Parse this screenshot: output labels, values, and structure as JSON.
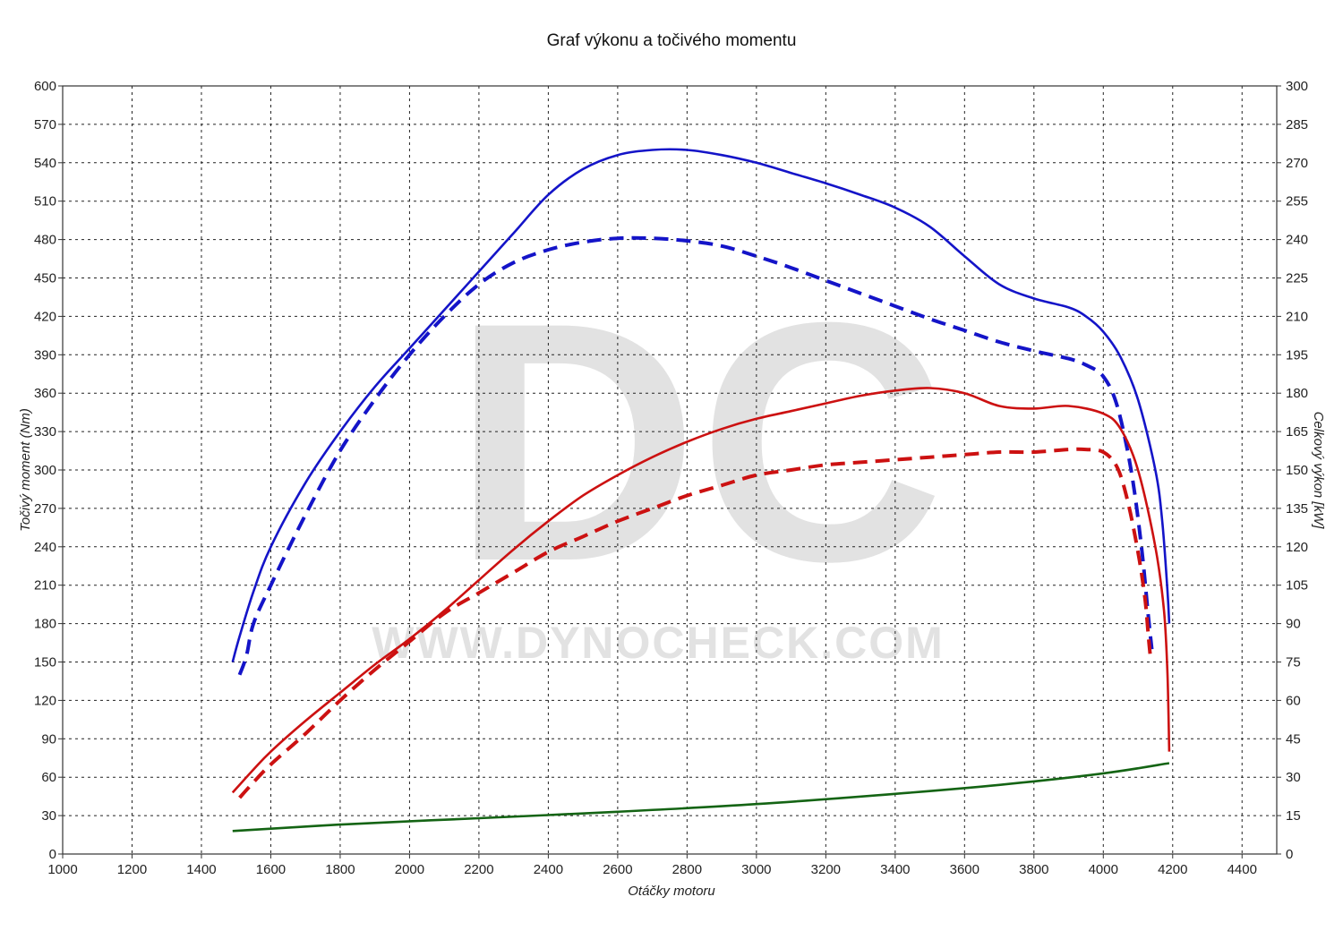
{
  "chart_data": {
    "type": "line",
    "title": "Graf výkonu a točivého momentu",
    "xlabel": "Otáčky motoru",
    "ylabel_left": "Točivý moment (Nm)",
    "ylabel_right": "Celkový výkon [kW]",
    "xlim": [
      1000,
      4500
    ],
    "ylim_left": [
      0,
      600
    ],
    "ylim_right": [
      0,
      300
    ],
    "x_ticks": [
      1000,
      1200,
      1400,
      1600,
      1800,
      2000,
      2200,
      2400,
      2600,
      2800,
      3000,
      3200,
      3400,
      3600,
      3800,
      4000,
      4200,
      4400
    ],
    "y_ticks_left": [
      0,
      30,
      60,
      90,
      120,
      150,
      180,
      210,
      240,
      270,
      300,
      330,
      360,
      390,
      420,
      450,
      480,
      510,
      540,
      570,
      600
    ],
    "y_ticks_right": [
      0,
      15,
      30,
      45,
      60,
      75,
      90,
      105,
      120,
      135,
      150,
      165,
      180,
      195,
      210,
      225,
      240,
      255,
      270,
      285,
      300
    ],
    "grid": true,
    "watermark": {
      "big": "DC",
      "url": "WWW.DYNOCHECK.COM"
    },
    "series": [
      {
        "axis": "left",
        "color": "#1414c8",
        "dash": false,
        "points": [
          [
            1490,
            150
          ],
          [
            1510,
            170
          ],
          [
            1550,
            205
          ],
          [
            1600,
            240
          ],
          [
            1700,
            290
          ],
          [
            1800,
            330
          ],
          [
            1900,
            365
          ],
          [
            2000,
            395
          ],
          [
            2100,
            425
          ],
          [
            2200,
            455
          ],
          [
            2300,
            485
          ],
          [
            2400,
            515
          ],
          [
            2500,
            535
          ],
          [
            2600,
            546
          ],
          [
            2700,
            550
          ],
          [
            2800,
            550
          ],
          [
            2900,
            546
          ],
          [
            3000,
            540
          ],
          [
            3100,
            532
          ],
          [
            3200,
            524
          ],
          [
            3300,
            515
          ],
          [
            3400,
            505
          ],
          [
            3500,
            490
          ],
          [
            3600,
            467
          ],
          [
            3700,
            445
          ],
          [
            3800,
            434
          ],
          [
            3900,
            427
          ],
          [
            3950,
            420
          ],
          [
            4000,
            408
          ],
          [
            4050,
            388
          ],
          [
            4100,
            355
          ],
          [
            4150,
            300
          ],
          [
            4170,
            260
          ],
          [
            4185,
            205
          ],
          [
            4190,
            180
          ]
        ]
      },
      {
        "axis": "left",
        "color": "#1414c8",
        "dash": true,
        "points": [
          [
            1510,
            140
          ],
          [
            1530,
            155
          ],
          [
            1550,
            180
          ],
          [
            1600,
            210
          ],
          [
            1700,
            265
          ],
          [
            1800,
            315
          ],
          [
            1900,
            355
          ],
          [
            2000,
            390
          ],
          [
            2100,
            420
          ],
          [
            2200,
            445
          ],
          [
            2300,
            462
          ],
          [
            2400,
            472
          ],
          [
            2500,
            478
          ],
          [
            2600,
            481
          ],
          [
            2700,
            481
          ],
          [
            2800,
            479
          ],
          [
            2900,
            475
          ],
          [
            3000,
            467
          ],
          [
            3100,
            458
          ],
          [
            3200,
            448
          ],
          [
            3300,
            438
          ],
          [
            3400,
            428
          ],
          [
            3500,
            418
          ],
          [
            3600,
            409
          ],
          [
            3700,
            400
          ],
          [
            3800,
            393
          ],
          [
            3900,
            387
          ],
          [
            3950,
            382
          ],
          [
            4000,
            373
          ],
          [
            4040,
            350
          ],
          [
            4080,
            300
          ],
          [
            4110,
            240
          ],
          [
            4130,
            185
          ],
          [
            4140,
            160
          ]
        ]
      },
      {
        "axis": "right",
        "color": "#cc1111",
        "dash": false,
        "points": [
          [
            1490,
            24
          ],
          [
            1550,
            33
          ],
          [
            1600,
            40
          ],
          [
            1700,
            52
          ],
          [
            1800,
            63
          ],
          [
            1900,
            74
          ],
          [
            2000,
            84
          ],
          [
            2100,
            95
          ],
          [
            2200,
            107
          ],
          [
            2300,
            119
          ],
          [
            2400,
            130
          ],
          [
            2500,
            140
          ],
          [
            2600,
            148
          ],
          [
            2700,
            155
          ],
          [
            2800,
            161
          ],
          [
            2900,
            166
          ],
          [
            3000,
            170
          ],
          [
            3100,
            173
          ],
          [
            3200,
            176
          ],
          [
            3300,
            179
          ],
          [
            3400,
            181
          ],
          [
            3500,
            182
          ],
          [
            3600,
            180
          ],
          [
            3700,
            175
          ],
          [
            3800,
            174
          ],
          [
            3900,
            175
          ],
          [
            4000,
            172
          ],
          [
            4050,
            166
          ],
          [
            4100,
            150
          ],
          [
            4150,
            120
          ],
          [
            4175,
            95
          ],
          [
            4185,
            70
          ],
          [
            4190,
            40
          ]
        ]
      },
      {
        "axis": "right",
        "color": "#cc1111",
        "dash": true,
        "points": [
          [
            1510,
            22
          ],
          [
            1550,
            28
          ],
          [
            1600,
            35
          ],
          [
            1700,
            47
          ],
          [
            1800,
            60
          ],
          [
            1900,
            72
          ],
          [
            2000,
            83
          ],
          [
            2100,
            94
          ],
          [
            2200,
            102
          ],
          [
            2300,
            110
          ],
          [
            2400,
            118
          ],
          [
            2500,
            124
          ],
          [
            2600,
            130
          ],
          [
            2700,
            135
          ],
          [
            2800,
            140
          ],
          [
            2900,
            144
          ],
          [
            3000,
            148
          ],
          [
            3100,
            150
          ],
          [
            3200,
            152
          ],
          [
            3300,
            153
          ],
          [
            3400,
            154
          ],
          [
            3500,
            155
          ],
          [
            3600,
            156
          ],
          [
            3700,
            157
          ],
          [
            3800,
            157
          ],
          [
            3900,
            158
          ],
          [
            3950,
            158
          ],
          [
            4000,
            157
          ],
          [
            4040,
            151
          ],
          [
            4070,
            138
          ],
          [
            4100,
            118
          ],
          [
            4120,
            100
          ],
          [
            4130,
            85
          ],
          [
            4135,
            78
          ]
        ]
      },
      {
        "axis": "right",
        "color": "#146414",
        "dash": false,
        "points": [
          [
            1490,
            9
          ],
          [
            1800,
            11.5
          ],
          [
            2200,
            14
          ],
          [
            2600,
            16.5
          ],
          [
            3000,
            19.5
          ],
          [
            3400,
            23.5
          ],
          [
            3700,
            27
          ],
          [
            4000,
            31.5
          ],
          [
            4190,
            35.5
          ]
        ]
      }
    ]
  }
}
